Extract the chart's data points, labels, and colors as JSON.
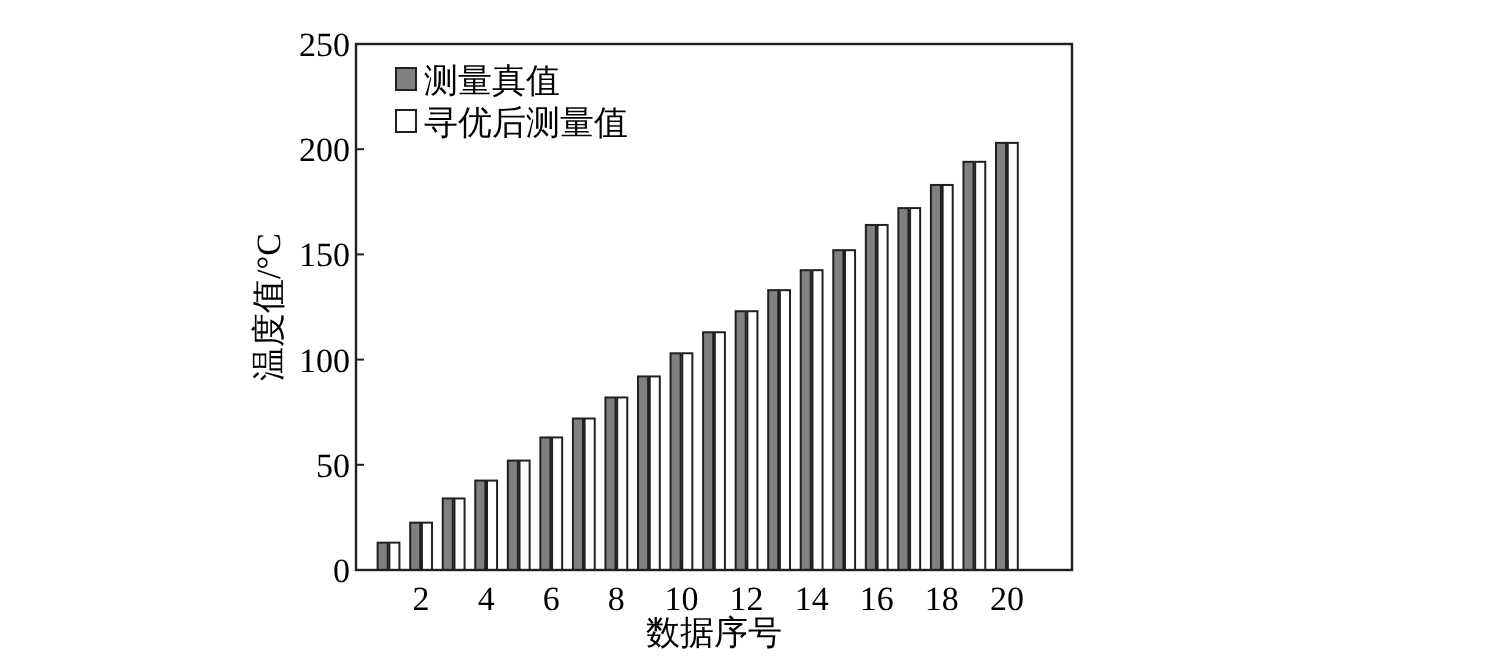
{
  "chart_data": {
    "type": "bar",
    "xlabel": "数据序号",
    "ylabel": "温度值/°C",
    "x": [
      1,
      2,
      3,
      4,
      5,
      6,
      7,
      8,
      9,
      10,
      11,
      12,
      13,
      14,
      15,
      16,
      17,
      18,
      19,
      20
    ],
    "series": [
      {
        "name": "测量真值",
        "color": "#808080",
        "values": [
          13,
          22.5,
          34,
          42.5,
          52,
          63,
          72,
          82,
          92,
          103,
          113,
          123,
          133,
          142.5,
          152,
          164,
          172,
          183,
          194,
          203
        ]
      },
      {
        "name": "寻优后测量值",
        "color": "#ffffff",
        "values": [
          13,
          22.5,
          34,
          42.5,
          52,
          63,
          72,
          82,
          92,
          103,
          113,
          123,
          133,
          142.5,
          152,
          164,
          172,
          183,
          194,
          203
        ]
      }
    ],
    "xlim": [
      0,
      22
    ],
    "xticks": [
      2,
      4,
      6,
      8,
      10,
      12,
      14,
      16,
      18,
      20
    ],
    "ylim": [
      0,
      250
    ],
    "yticks": [
      0,
      50,
      100,
      150,
      200,
      250
    ],
    "grid": false,
    "legend": "top left"
  }
}
